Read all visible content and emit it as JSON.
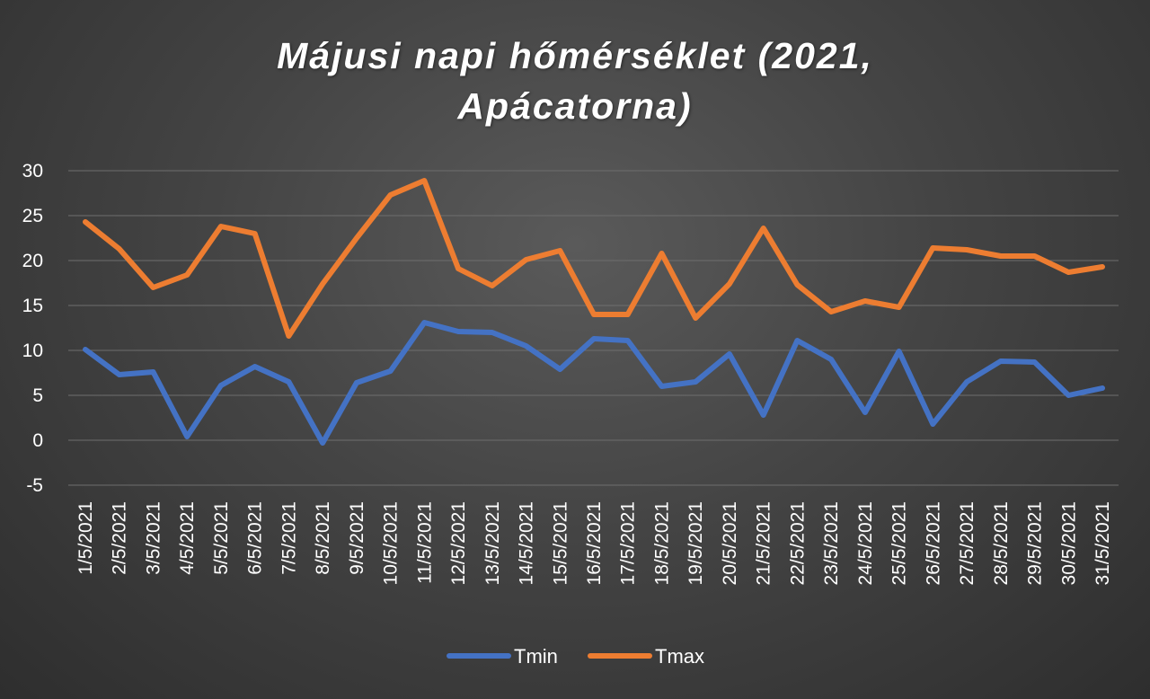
{
  "chart_data": {
    "type": "line",
    "title_lines": [
      "Májusi napi hőmérséklet (2021,",
      "Apácatorna)"
    ],
    "xlabel": "",
    "ylabel": "",
    "ylim": [
      -5,
      30
    ],
    "yticks": [
      30,
      25,
      20,
      15,
      10,
      5,
      0,
      -5
    ],
    "grid": true,
    "legend_position": "bottom",
    "categories": [
      "1/5/2021",
      "2/5/2021",
      "3/5/2021",
      "4/5/2021",
      "5/5/2021",
      "6/5/2021",
      "7/5/2021",
      "8/5/2021",
      "9/5/2021",
      "10/5/2021",
      "11/5/2021",
      "12/5/2021",
      "13/5/2021",
      "14/5/2021",
      "15/5/2021",
      "16/5/2021",
      "17/5/2021",
      "18/5/2021",
      "19/5/2021",
      "20/5/2021",
      "21/5/2021",
      "22/5/2021",
      "23/5/2021",
      "24/5/2021",
      "25/5/2021",
      "26/5/2021",
      "27/5/2021",
      "28/5/2021",
      "29/5/2021",
      "30/5/2021",
      "31/5/2021"
    ],
    "series": [
      {
        "name": "Tmin",
        "color": "#4472c4",
        "values": [
          10.1,
          7.3,
          7.6,
          0.4,
          6.1,
          8.2,
          6.5,
          -0.3,
          6.4,
          7.7,
          13.1,
          12.1,
          12.0,
          10.5,
          7.9,
          11.3,
          11.1,
          6.0,
          6.5,
          9.6,
          2.8,
          11.1,
          9.0,
          3.1,
          9.9,
          1.8,
          6.5,
          8.8,
          8.7,
          5.0,
          5.8
        ]
      },
      {
        "name": "Tmax",
        "color": "#ed7d31",
        "values": [
          24.3,
          21.3,
          17.0,
          18.4,
          23.8,
          23.0,
          11.6,
          17.4,
          22.5,
          27.3,
          28.9,
          19.1,
          17.2,
          20.1,
          21.1,
          14.0,
          14.0,
          20.8,
          13.6,
          17.4,
          23.6,
          17.3,
          14.3,
          15.5,
          14.8,
          21.4,
          21.2,
          20.5,
          20.5,
          18.7,
          19.3
        ]
      }
    ]
  }
}
